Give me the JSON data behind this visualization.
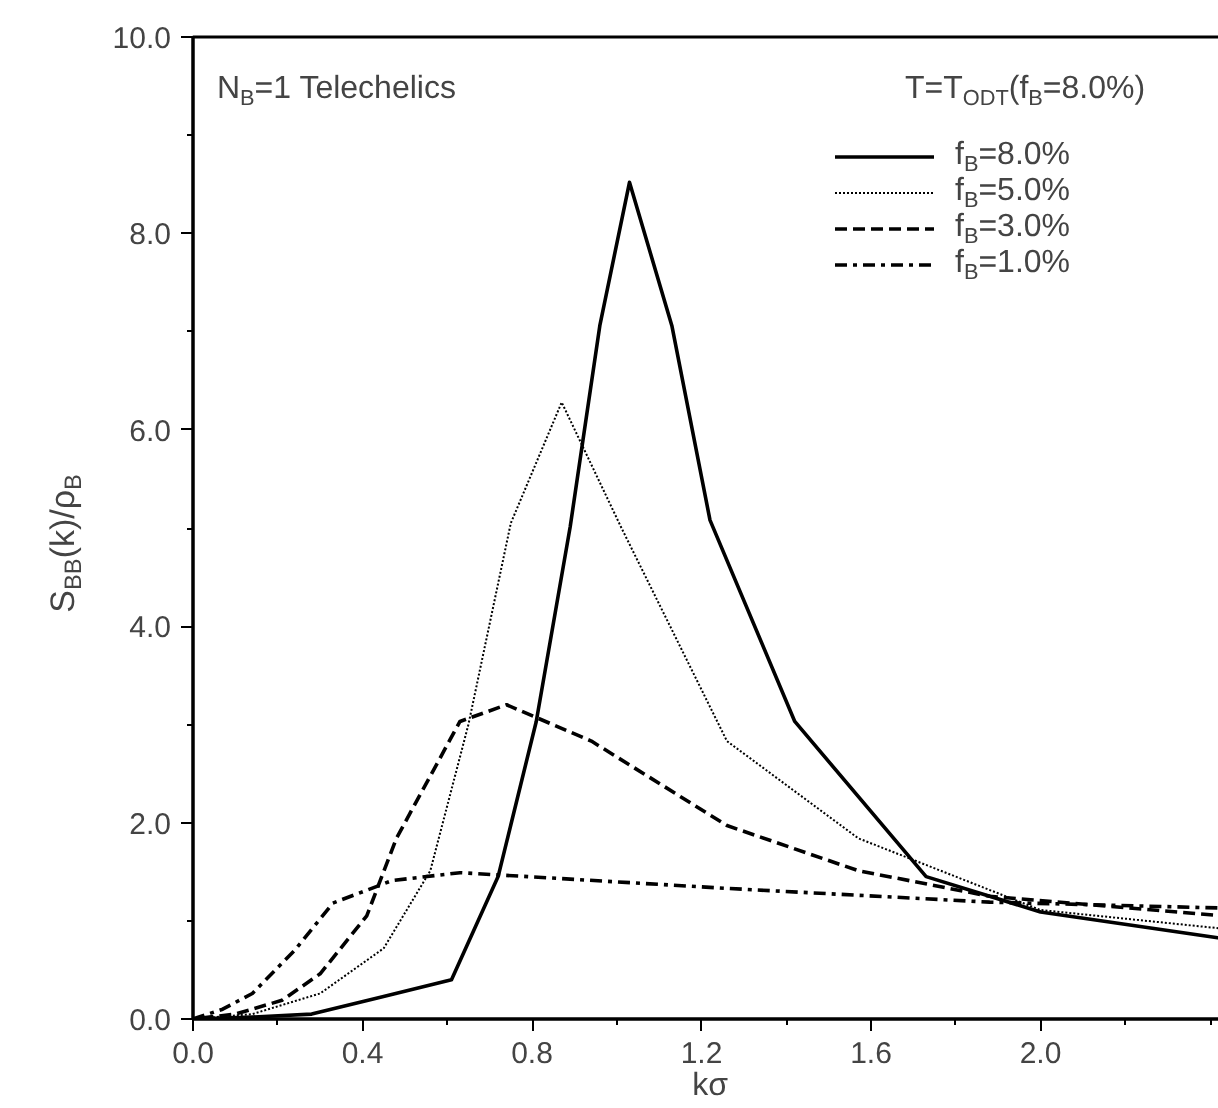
{
  "chart_data": {
    "type": "line",
    "xlabel": "kσ",
    "ylabel": "S$_{BB}$(k)/ρ$_{B}$",
    "annotations": [
      "N$_{B}$=1 Telechelics",
      "T=T$_{ODT}$(f$_{B}$=8.0%)"
    ],
    "xlim": [
      0,
      2.44
    ],
    "ylim": [
      0,
      10
    ],
    "xticks": [
      {
        "value": 0,
        "label": "0.0"
      },
      {
        "value": 0.4,
        "label": "0.4"
      },
      {
        "value": 0.8,
        "label": "0.8"
      },
      {
        "value": 1.2,
        "label": "1.2"
      },
      {
        "value": 1.6,
        "label": "1.6"
      },
      {
        "value": 2.0,
        "label": "2.0"
      }
    ],
    "yticks": [
      {
        "value": 0,
        "label": "0.0"
      },
      {
        "value": 2,
        "label": "2.0"
      },
      {
        "value": 4,
        "label": "4.0"
      },
      {
        "value": 6,
        "label": "6.0"
      },
      {
        "value": 8,
        "label": "8.0"
      },
      {
        "value": 10,
        "label": "10.0"
      }
    ],
    "grid": false,
    "legend": "top right",
    "series": [
      {
        "name": "f$_{B}$=8.0%",
        "color": "#000000",
        "line_style": "solid",
        "x": [
          0,
          0.14,
          0.28,
          0.44,
          0.61,
          0.72,
          0.81,
          0.89,
          0.96,
          1.03,
          1.13,
          1.22,
          1.42,
          1.73,
          2.0,
          2.43
        ],
        "values": [
          0,
          0.02,
          0.05,
          0.22,
          0.4,
          1.45,
          3.03,
          5.01,
          7.06,
          8.52,
          7.06,
          5.08,
          3.03,
          1.45,
          1.09,
          0.82
        ]
      },
      {
        "name": "f$_{B}$=5.0%",
        "color": "#000000",
        "line_style": "dotted",
        "x": [
          0,
          0.14,
          0.3,
          0.45,
          0.56,
          0.65,
          0.75,
          0.87,
          1.01,
          1.26,
          1.57,
          2.0,
          2.43
        ],
        "values": [
          0,
          0.05,
          0.26,
          0.72,
          1.51,
          3.0,
          5.05,
          6.28,
          5.01,
          2.83,
          1.84,
          1.11,
          0.92
        ]
      },
      {
        "name": "f$_{B}$=3.0%",
        "color": "#000000",
        "line_style": "dashed",
        "x": [
          0.02,
          0.1,
          0.21,
          0.3,
          0.41,
          0.48,
          0.63,
          0.74,
          0.94,
          1.26,
          1.57,
          1.88,
          2.43
        ],
        "values": [
          0.01,
          0.05,
          0.19,
          0.46,
          1.05,
          1.84,
          3.03,
          3.2,
          2.83,
          1.97,
          1.51,
          1.25,
          1.05
        ]
      },
      {
        "name": "f$_{B}$=1.0%",
        "color": "#000000",
        "line_style": "dashdot",
        "x": [
          0,
          0.07,
          0.14,
          0.24,
          0.33,
          0.47,
          0.63,
          0.79,
          1.26,
          1.88,
          2.43
        ],
        "values": [
          0,
          0.1,
          0.26,
          0.7,
          1.18,
          1.41,
          1.49,
          1.45,
          1.33,
          1.19,
          1.13
        ]
      }
    ]
  }
}
